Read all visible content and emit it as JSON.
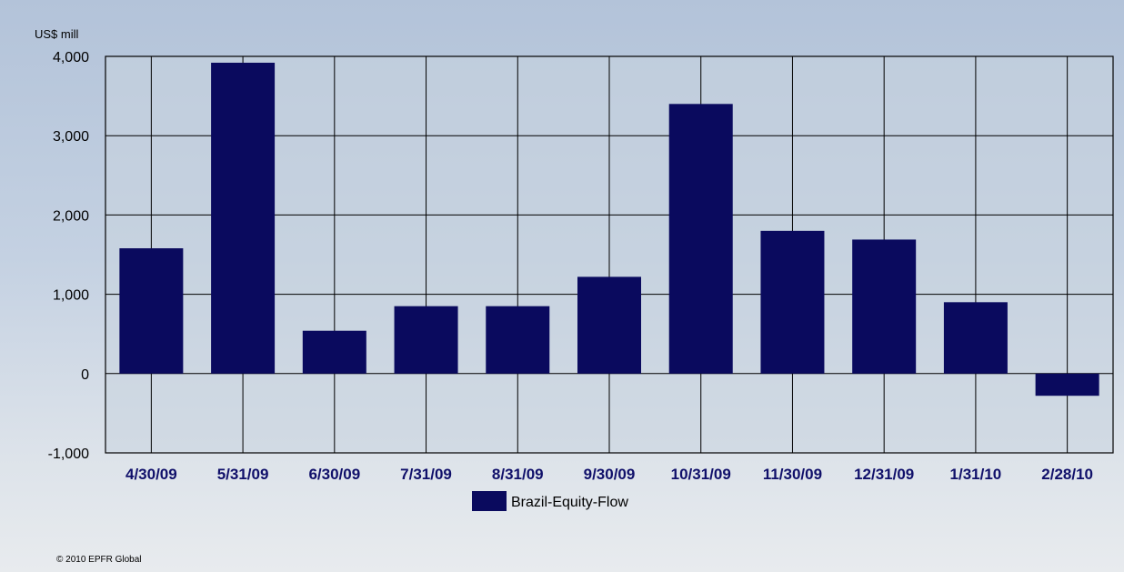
{
  "chart_data": {
    "type": "bar",
    "unit_label": "US$ mill",
    "categories": [
      "4/30/09",
      "5/31/09",
      "6/30/09",
      "7/31/09",
      "8/31/09",
      "9/30/09",
      "10/31/09",
      "11/30/09",
      "12/31/09",
      "1/31/10",
      "2/28/10"
    ],
    "series": [
      {
        "name": "Brazil-Equity-Flow",
        "color": "#0a0a5e",
        "values": [
          1580,
          3920,
          540,
          850,
          850,
          1220,
          3400,
          1800,
          1690,
          900,
          -280
        ]
      }
    ],
    "ylim": [
      -1000,
      4000
    ],
    "yticks": [
      4000,
      3000,
      2000,
      1000,
      0,
      -1000
    ],
    "ytick_labels": [
      "4,000",
      "3,000",
      "2,000",
      "1,000",
      "0",
      "-1,000"
    ],
    "grid": true,
    "legend_position": "bottom-center",
    "plot_background": "#c9d3de",
    "tick_label_color": "#10106a"
  },
  "footer": {
    "copyright": "© 2010 EPFR Global"
  }
}
